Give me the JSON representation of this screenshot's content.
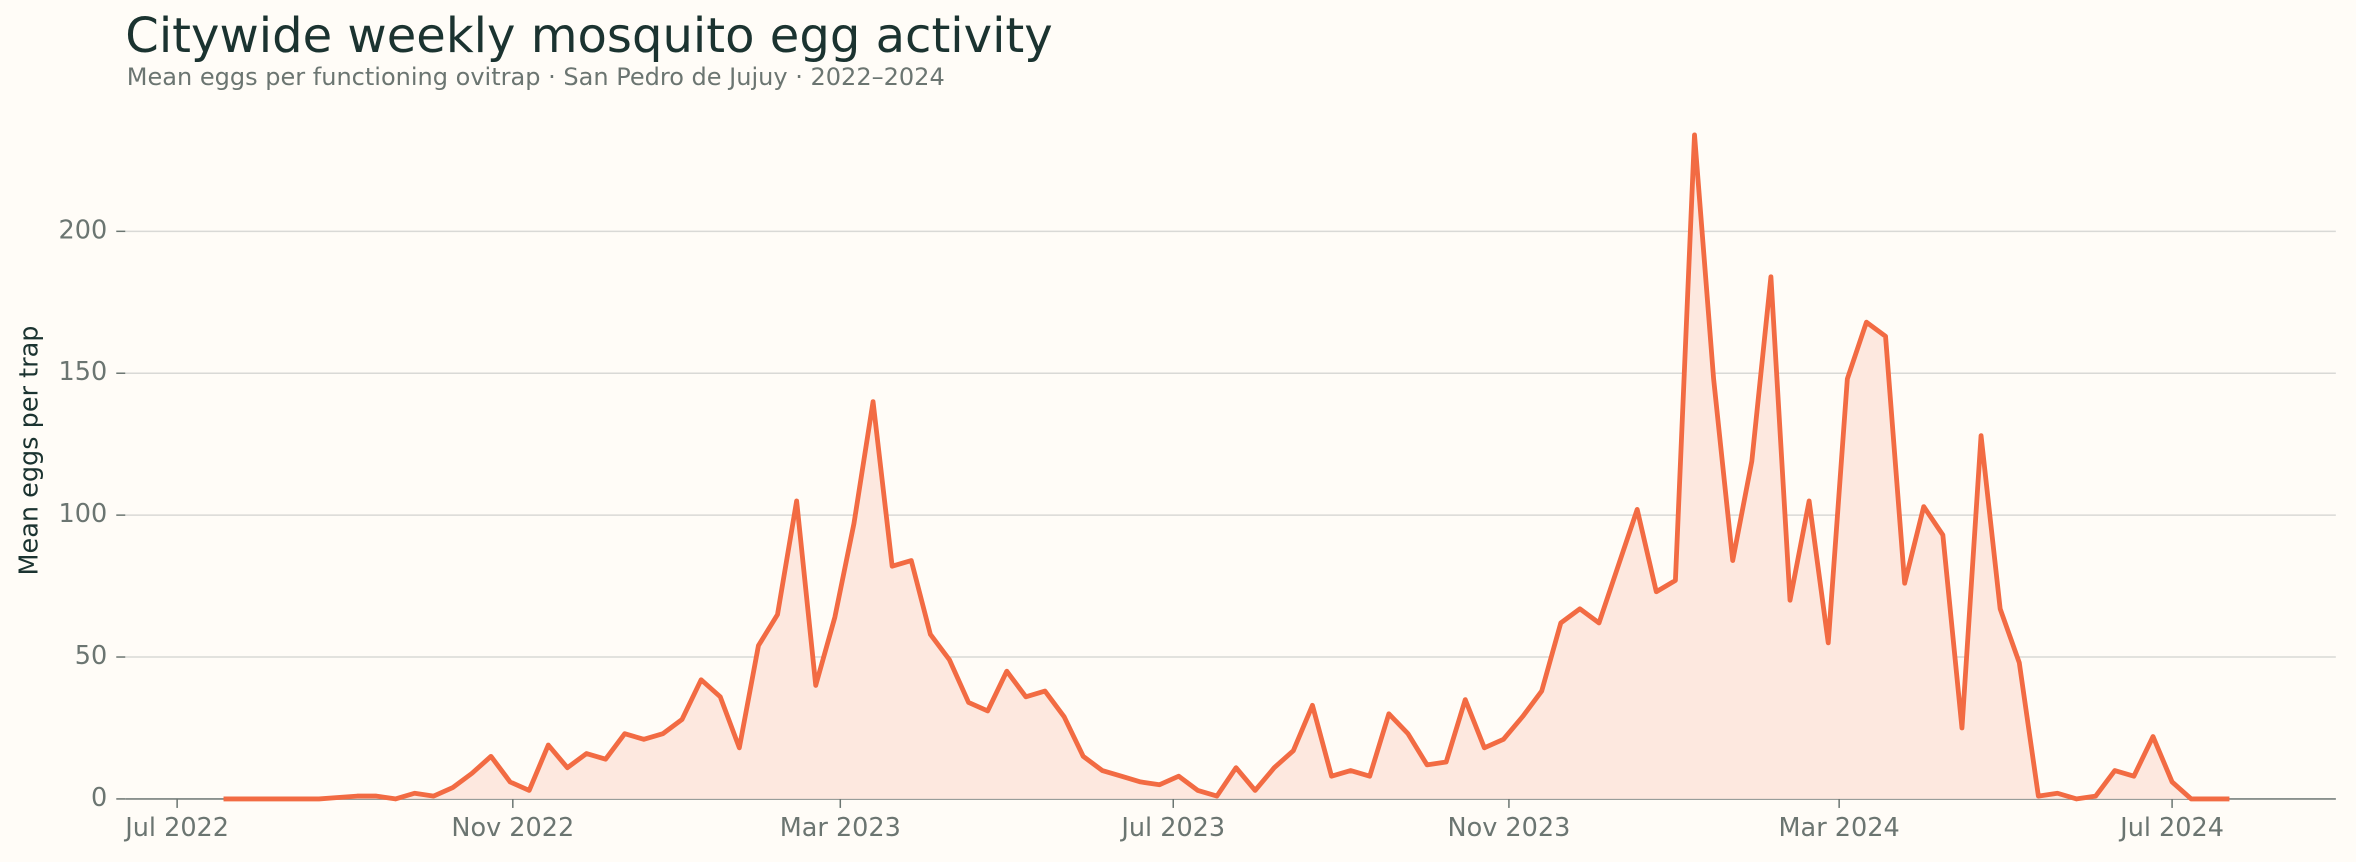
{
  "chart_data": {
    "type": "line",
    "title": "Citywide weekly mosquito egg activity",
    "subtitle": "Mean eggs per functioning ovitrap · San Pedro de Jujuy · 2022–2024",
    "y_label": "Mean eggs per trap",
    "x": [
      "2022-07-18",
      "2022-07-25",
      "2022-08-01",
      "2022-08-08",
      "2022-08-15",
      "2022-08-22",
      "2022-08-29",
      "2022-09-05",
      "2022-09-12",
      "2022-09-19",
      "2022-09-26",
      "2022-10-03",
      "2022-10-10",
      "2022-10-17",
      "2022-10-24",
      "2022-10-31",
      "2022-11-07",
      "2022-11-14",
      "2022-11-21",
      "2022-11-28",
      "2022-12-05",
      "2022-12-12",
      "2022-12-19",
      "2022-12-26",
      "2023-01-02",
      "2023-01-09",
      "2023-01-16",
      "2023-01-23",
      "2023-01-30",
      "2023-02-06",
      "2023-02-13",
      "2023-02-20",
      "2023-02-27",
      "2023-03-06",
      "2023-03-13",
      "2023-03-20",
      "2023-03-27",
      "2023-04-03",
      "2023-04-10",
      "2023-04-17",
      "2023-04-24",
      "2023-05-01",
      "2023-05-08",
      "2023-05-15",
      "2023-05-22",
      "2023-05-29",
      "2023-06-05",
      "2023-06-12",
      "2023-06-19",
      "2023-06-26",
      "2023-07-03",
      "2023-07-10",
      "2023-07-17",
      "2023-07-24",
      "2023-07-31",
      "2023-08-07",
      "2023-08-14",
      "2023-08-21",
      "2023-08-28",
      "2023-09-04",
      "2023-09-11",
      "2023-09-18",
      "2023-09-25",
      "2023-10-02",
      "2023-10-09",
      "2023-10-16",
      "2023-10-23",
      "2023-10-30",
      "2023-11-06",
      "2023-11-13",
      "2023-11-20",
      "2023-11-27",
      "2023-12-04",
      "2023-12-11",
      "2023-12-18",
      "2023-12-25",
      "2024-01-01",
      "2024-01-08",
      "2024-01-15",
      "2024-01-22",
      "2024-01-29",
      "2024-02-05",
      "2024-02-12",
      "2024-02-19",
      "2024-02-26",
      "2024-03-04",
      "2024-03-11",
      "2024-03-18",
      "2024-03-25",
      "2024-04-01",
      "2024-04-08",
      "2024-04-15",
      "2024-04-22",
      "2024-04-29",
      "2024-05-06",
      "2024-05-13",
      "2024-05-20",
      "2024-05-27",
      "2024-06-03",
      "2024-06-10",
      "2024-06-17",
      "2024-06-24",
      "2024-07-01",
      "2024-07-08",
      "2024-07-15",
      "2024-07-22"
    ],
    "series": [
      {
        "name": "Mean eggs per trap",
        "color": "#f26b43",
        "fill": "#fde8df",
        "values": [
          0,
          0,
          0,
          0,
          0,
          0,
          0.5,
          1,
          1,
          0,
          2,
          1,
          4,
          9,
          15,
          6,
          3,
          19,
          11,
          16,
          14,
          23,
          21,
          23,
          28,
          42,
          36,
          18,
          54,
          65,
          105,
          40,
          64,
          97,
          140,
          82,
          84,
          58,
          49,
          34,
          31,
          45,
          36,
          38,
          29,
          15,
          10,
          8,
          6,
          5,
          8,
          3,
          1,
          11,
          3,
          11,
          17,
          33,
          8,
          10,
          8,
          30,
          23,
          12,
          13,
          35,
          18,
          21,
          29,
          38,
          62,
          67,
          62,
          82,
          102,
          73,
          77,
          234,
          148,
          84,
          119,
          184,
          70,
          105,
          55,
          148,
          168,
          163,
          76,
          103,
          93,
          25,
          128,
          67,
          48,
          1,
          2,
          0,
          1,
          10,
          8,
          22,
          6,
          0,
          0,
          0
        ]
      }
    ],
    "xlim": [
      "2022-06-12",
      "2024-08-30"
    ],
    "xticks": [
      {
        "value": "2022-07-01",
        "label": "Jul 2022"
      },
      {
        "value": "2022-11-01",
        "label": "Nov 2022"
      },
      {
        "value": "2023-03-01",
        "label": "Mar 2023"
      },
      {
        "value": "2023-07-01",
        "label": "Jul 2023"
      },
      {
        "value": "2023-11-01",
        "label": "Nov 2023"
      },
      {
        "value": "2024-03-01",
        "label": "Mar 2024"
      },
      {
        "value": "2024-07-01",
        "label": "Jul 2024"
      }
    ],
    "ylim": [
      0,
      245
    ],
    "yticks": [
      0,
      50,
      100,
      150,
      200
    ],
    "grid": true
  }
}
